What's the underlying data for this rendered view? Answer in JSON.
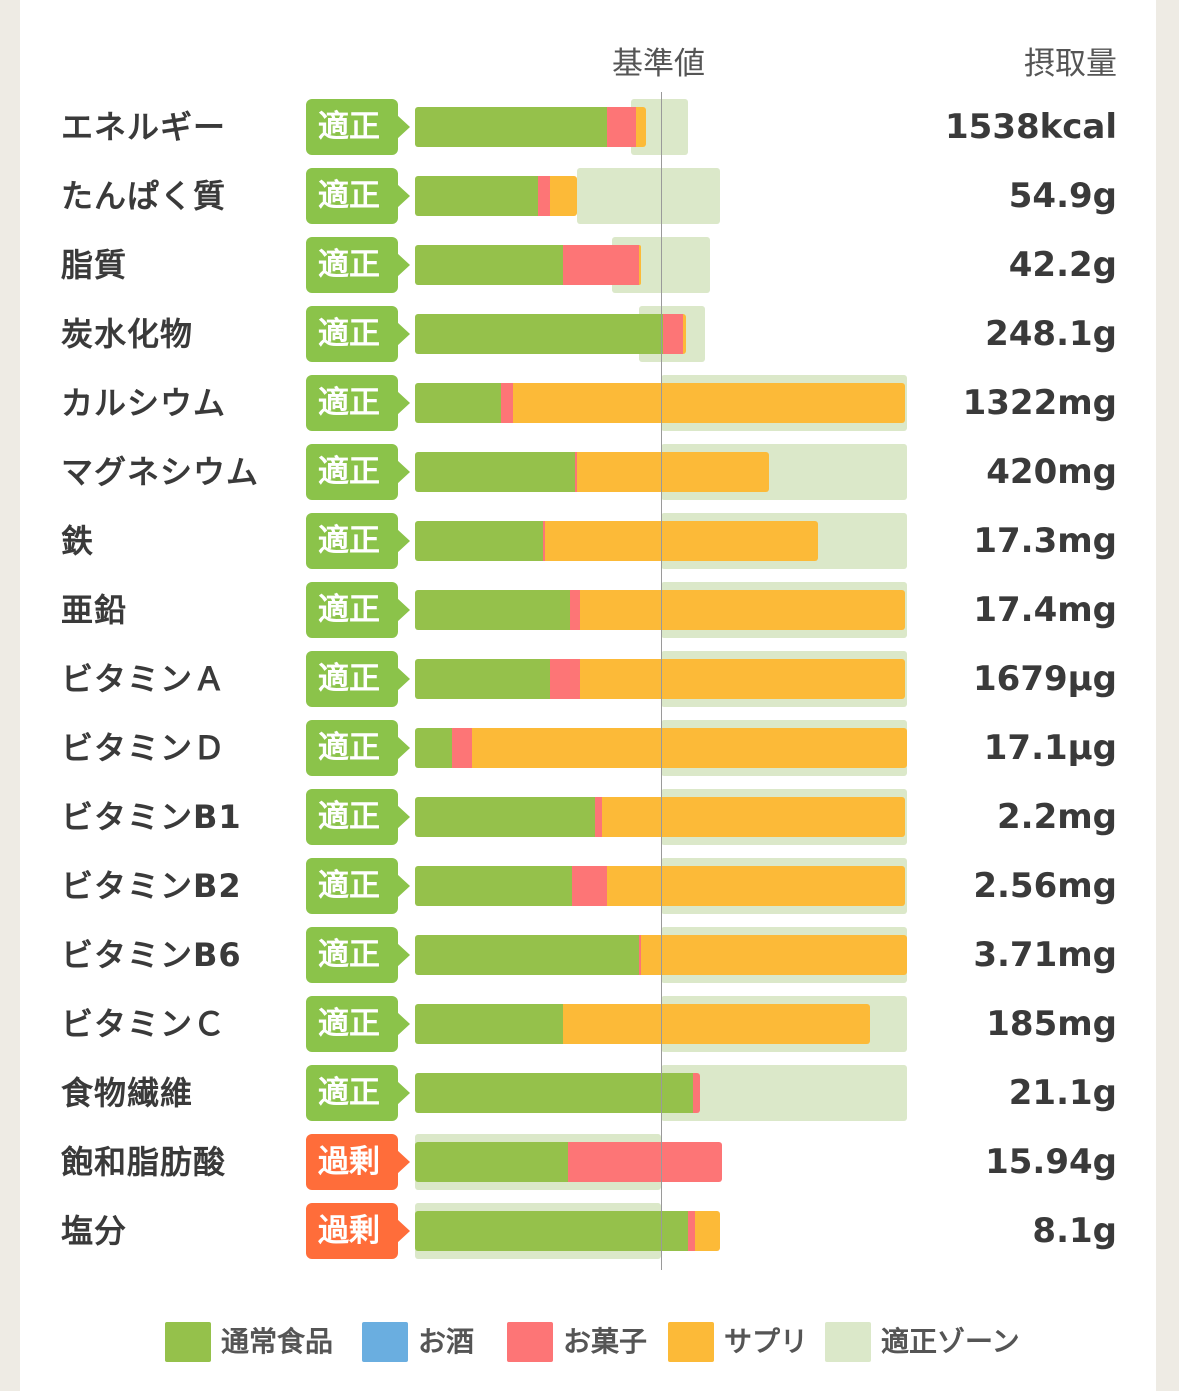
{
  "header": {
    "reference_label": "基準値",
    "intake_label": "摂取量"
  },
  "status_colors": {
    "適正": "#8bc34a",
    "過剰": "#ff6d3a"
  },
  "chart_data": {
    "type": "bar",
    "stacked": true,
    "orientation": "horizontal",
    "unit_note": "values are percent of the reference value (基準値 = 100)",
    "xlim": [
      0,
      200
    ],
    "reference_line": 100,
    "series": [
      {
        "name": "通常食品",
        "color": "#95c14b"
      },
      {
        "name": "お酒",
        "color": "#6aaee0"
      },
      {
        "name": "お菓子",
        "color": "#fd7576"
      },
      {
        "name": "サプリ",
        "color": "#fcba38"
      }
    ],
    "zone_label": "適正ゾーン",
    "zone_color": "#dbe8c9",
    "rows": [
      {
        "label": "エネルギー",
        "status": "適正",
        "intake": "1538kcal",
        "zone": [
          88,
          111
        ],
        "values": [
          78,
          0,
          12,
          4
        ]
      },
      {
        "label": "たんぱく質",
        "status": "適正",
        "intake": "54.9g",
        "zone": [
          66,
          124
        ],
        "values": [
          50,
          0,
          5,
          11
        ]
      },
      {
        "label": "脂質",
        "status": "適正",
        "intake": "42.2g",
        "zone": [
          80,
          120
        ],
        "values": [
          60,
          0,
          31,
          1
        ]
      },
      {
        "label": "炭水化物",
        "status": "適正",
        "intake": "248.1g",
        "zone": [
          91,
          118
        ],
        "values": [
          101,
          0,
          8,
          1
        ]
      },
      {
        "label": "カルシウム",
        "status": "適正",
        "intake": "1322mg",
        "zone": [
          100,
          200
        ],
        "values": [
          35,
          0,
          5,
          159
        ]
      },
      {
        "label": "マグネシウム",
        "status": "適正",
        "intake": "420mg",
        "zone": [
          100,
          200
        ],
        "values": [
          65,
          0,
          1,
          78
        ]
      },
      {
        "label": "鉄",
        "status": "適正",
        "intake": "17.3mg",
        "zone": [
          100,
          200
        ],
        "values": [
          52,
          0,
          1,
          111
        ]
      },
      {
        "label": "亜鉛",
        "status": "適正",
        "intake": "17.4mg",
        "zone": [
          100,
          200
        ],
        "values": [
          63,
          0,
          4,
          132
        ]
      },
      {
        "label": "ビタミンＡ",
        "status": "適正",
        "intake": "1679μg",
        "zone": [
          100,
          200
        ],
        "values": [
          55,
          0,
          12,
          132
        ]
      },
      {
        "label": "ビタミンＤ",
        "status": "適正",
        "intake": "17.1μg",
        "zone": [
          100,
          200
        ],
        "values": [
          15,
          0,
          8,
          177
        ]
      },
      {
        "label": "ビタミンB1",
        "status": "適正",
        "intake": "2.2mg",
        "zone": [
          100,
          200
        ],
        "values": [
          73,
          0,
          3,
          123
        ]
      },
      {
        "label": "ビタミンB2",
        "status": "適正",
        "intake": "2.56mg",
        "zone": [
          100,
          200
        ],
        "values": [
          64,
          0,
          14,
          121
        ]
      },
      {
        "label": "ビタミンB6",
        "status": "適正",
        "intake": "3.71mg",
        "zone": [
          100,
          200
        ],
        "values": [
          91,
          0,
          1,
          108
        ]
      },
      {
        "label": "ビタミンＣ",
        "status": "適正",
        "intake": "185mg",
        "zone": [
          100,
          200
        ],
        "values": [
          60,
          0,
          0,
          125
        ]
      },
      {
        "label": "食物繊維",
        "status": "適正",
        "intake": "21.1g",
        "zone": [
          100,
          200
        ],
        "values": [
          113,
          0,
          3,
          0
        ]
      },
      {
        "label": "飽和脂肪酸",
        "status": "過剰",
        "intake": "15.94g",
        "zone": [
          0,
          100
        ],
        "values": [
          62,
          0,
          63,
          0
        ]
      },
      {
        "label": "塩分",
        "status": "過剰",
        "intake": "8.1g",
        "zone": [
          0,
          100
        ],
        "values": [
          111,
          0,
          3,
          10
        ]
      }
    ]
  },
  "legend": [
    {
      "label": "通常食品",
      "color": "#95c14b"
    },
    {
      "label": "お酒",
      "color": "#6aaee0"
    },
    {
      "label": "お菓子",
      "color": "#fd7576"
    },
    {
      "label": "サプリ",
      "color": "#fcba38"
    },
    {
      "label": "適正ゾーン",
      "color": "#dbe8c9"
    }
  ]
}
